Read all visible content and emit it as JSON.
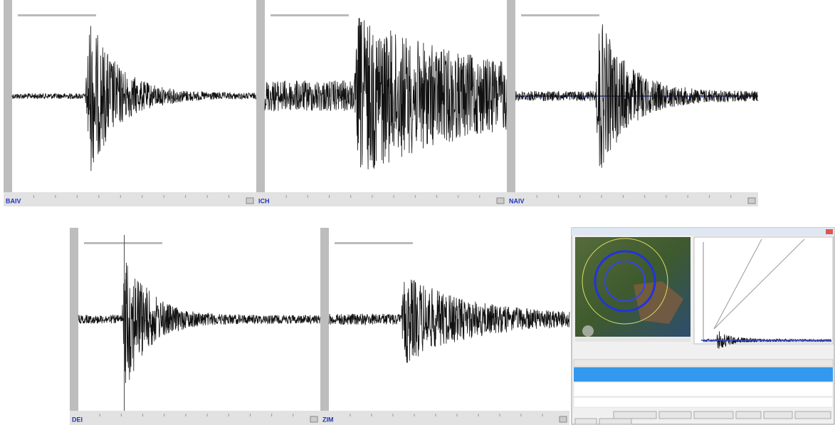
{
  "panels": [
    {
      "station": "BAIV"
    },
    {
      "station": "ICH"
    },
    {
      "station": "NAIV"
    },
    {
      "station": "DEI"
    },
    {
      "station": "ZIM"
    }
  ]
}
